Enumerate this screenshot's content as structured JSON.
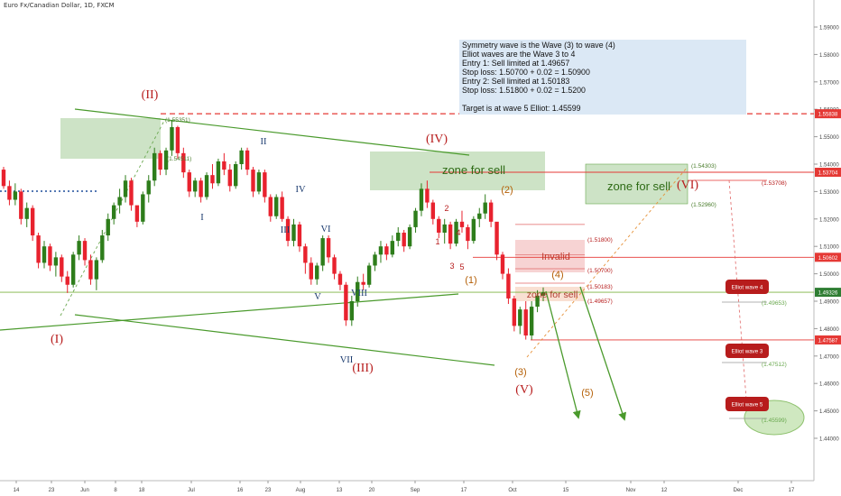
{
  "title": "Euro Fx/Canadian Dollar, 1D, FXCM",
  "info_lines": [
    "Symmetry wave is the Wave (3) to wave (4)",
    "Elliot waves are the Wave 3 to 4",
    "Entry 1: Sell limited at 1.49657",
    "Stop loss: 1.50700 + 0.02 = 1.50900",
    "Entry 2: Sell limited at 1.50183",
    "Stop loss: 1.51800 + 0.02 = 1.5200",
    "",
    "Target is at wave 5 Elliot: 1.45599"
  ],
  "colors": {
    "bull": "#2e7d1b",
    "bear": "#e8222e",
    "wave_red": "#b71c1c",
    "wave_blue": "#1a3a6e",
    "zone_green": "#cde3c6",
    "zone_red": "#f7d3d3",
    "line_green": "#4a9a2c",
    "price_tag_red": "#e53935",
    "price_tag_green": "#2e7d32"
  },
  "chart_data": {
    "type": "candlestick",
    "title": "Euro Fx/Canadian Dollar, 1D, FXCM",
    "ylim": [
      1.4355,
      1.5995
    ],
    "y_ticks": [
      "1.59000",
      "1.58000",
      "1.57000",
      "1.56000",
      "1.55000",
      "1.54000",
      "1.53000",
      "1.52000",
      "1.51000",
      "1.50000",
      "1.49000",
      "1.48000",
      "1.47000",
      "1.46000",
      "1.45000",
      "1.44000"
    ],
    "x_ticks": [
      "14",
      "23",
      "Jun",
      "8",
      "18",
      "Jul",
      "16",
      "23",
      "Aug",
      "13",
      "20",
      "Sep",
      "17",
      "Oct",
      "15",
      "Nov",
      "12",
      "Dec",
      "17"
    ],
    "wave_labels_main": [
      "(I)",
      "(II)",
      "(III)",
      "(IV)",
      "(V)",
      "(VI)"
    ],
    "wave_labels_roman": [
      "I",
      "II",
      "III",
      "IV",
      "V",
      "VI",
      "VII",
      "VIII",
      "VII"
    ],
    "wave_labels_small": [
      "(1)",
      "(2)",
      "(3)",
      "(4)",
      "(5)",
      "1",
      "2",
      "3",
      "4",
      "5"
    ],
    "zone_labels": [
      "zone for sell",
      "zone for sell",
      "Invalid",
      "zone for sell"
    ],
    "level_labels": [
      "(1.55351)",
      "(1.54511)",
      "(1.51800)",
      "(1.50700)",
      "(1.50183)",
      "(1.49657)",
      "(1.54303)",
      "(1.52960)",
      "(1.53708)",
      "(1.49653)",
      "(1.47512)",
      "(1.45599)"
    ],
    "price_tags": [
      {
        "label": "1.55838",
        "color": "red"
      },
      {
        "label": "1.53704",
        "color": "red"
      },
      {
        "label": "1.50602",
        "color": "red"
      },
      {
        "label": "1.49326",
        "color": "green"
      },
      {
        "label": "1.47587",
        "color": "red"
      }
    ],
    "elliot_bubbles": [
      "Elliot wave 4",
      "Elliot wave 3",
      "Elliot wave 5"
    ],
    "candles_ohlc": [
      [
        1.538,
        1.539,
        1.531,
        1.532
      ],
      [
        1.532,
        1.534,
        1.525,
        1.527
      ],
      [
        1.527,
        1.533,
        1.525,
        1.53
      ],
      [
        1.53,
        1.531,
        1.518,
        1.52
      ],
      [
        1.52,
        1.526,
        1.517,
        1.524
      ],
      [
        1.524,
        1.525,
        1.512,
        1.514
      ],
      [
        1.514,
        1.515,
        1.502,
        1.504
      ],
      [
        1.504,
        1.512,
        1.502,
        1.51
      ],
      [
        1.51,
        1.511,
        1.501,
        1.503
      ],
      [
        1.503,
        1.508,
        1.499,
        1.506
      ],
      [
        1.506,
        1.507,
        1.497,
        1.499
      ],
      [
        1.499,
        1.501,
        1.493,
        1.496
      ],
      [
        1.496,
        1.508,
        1.495,
        1.507
      ],
      [
        1.507,
        1.514,
        1.505,
        1.512
      ],
      [
        1.512,
        1.513,
        1.503,
        1.505
      ],
      [
        1.505,
        1.507,
        1.496,
        1.498
      ],
      [
        1.498,
        1.506,
        1.494,
        1.505
      ],
      [
        1.505,
        1.516,
        1.504,
        1.514
      ],
      [
        1.514,
        1.522,
        1.512,
        1.52
      ],
      [
        1.52,
        1.526,
        1.518,
        1.525
      ],
      [
        1.525,
        1.531,
        1.522,
        1.528
      ],
      [
        1.528,
        1.536,
        1.526,
        1.534
      ],
      [
        1.534,
        1.535,
        1.523,
        1.525
      ],
      [
        1.525,
        1.523,
        1.517,
        1.519
      ],
      [
        1.519,
        1.53,
        1.518,
        1.529
      ],
      [
        1.529,
        1.536,
        1.526,
        1.534
      ],
      [
        1.534,
        1.546,
        1.532,
        1.544
      ],
      [
        1.544,
        1.545,
        1.536,
        1.538
      ],
      [
        1.538,
        1.546,
        1.536,
        1.545
      ],
      [
        1.545,
        1.556,
        1.543,
        1.5535
      ],
      [
        1.5535,
        1.554,
        1.542,
        1.544
      ],
      [
        1.544,
        1.546,
        1.535,
        1.537
      ],
      [
        1.537,
        1.538,
        1.528,
        1.53
      ],
      [
        1.53,
        1.535,
        1.528,
        1.534
      ],
      [
        1.534,
        1.535,
        1.526,
        1.528
      ],
      [
        1.528,
        1.537,
        1.527,
        1.536
      ],
      [
        1.536,
        1.54,
        1.531,
        1.533
      ],
      [
        1.533,
        1.542,
        1.532,
        1.541
      ],
      [
        1.541,
        1.544,
        1.536,
        1.538
      ],
      [
        1.538,
        1.54,
        1.53,
        1.532
      ],
      [
        1.532,
        1.541,
        1.531,
        1.54
      ],
      [
        1.54,
        1.546,
        1.538,
        1.545
      ],
      [
        1.545,
        1.546,
        1.536,
        1.538
      ],
      [
        1.538,
        1.539,
        1.528,
        1.53
      ],
      [
        1.53,
        1.538,
        1.529,
        1.537
      ],
      [
        1.537,
        1.538,
        1.526,
        1.528
      ],
      [
        1.528,
        1.529,
        1.519,
        1.521
      ],
      [
        1.521,
        1.529,
        1.52,
        1.528
      ],
      [
        1.528,
        1.53,
        1.519,
        1.52
      ],
      [
        1.52,
        1.521,
        1.51,
        1.512
      ],
      [
        1.512,
        1.52,
        1.51,
        1.518
      ],
      [
        1.518,
        1.519,
        1.508,
        1.51
      ],
      [
        1.51,
        1.511,
        1.5,
        1.504
      ],
      [
        1.504,
        1.506,
        1.496,
        1.498
      ],
      [
        1.498,
        1.504,
        1.496,
        1.503
      ],
      [
        1.503,
        1.514,
        1.501,
        1.513
      ],
      [
        1.513,
        1.514,
        1.504,
        1.506
      ],
      [
        1.506,
        1.507,
        1.498,
        1.5
      ],
      [
        1.5,
        1.501,
        1.494,
        1.496
      ],
      [
        1.496,
        1.497,
        1.481,
        1.483
      ],
      [
        1.483,
        1.492,
        1.481,
        1.49
      ],
      [
        1.49,
        1.499,
        1.488,
        1.497
      ],
      [
        1.497,
        1.5,
        1.494,
        1.496
      ],
      [
        1.496,
        1.504,
        1.495,
        1.503
      ],
      [
        1.503,
        1.508,
        1.501,
        1.507
      ],
      [
        1.507,
        1.512,
        1.504,
        1.51
      ],
      [
        1.51,
        1.511,
        1.505,
        1.507
      ],
      [
        1.507,
        1.514,
        1.506,
        1.512
      ],
      [
        1.512,
        1.517,
        1.51,
        1.515
      ],
      [
        1.515,
        1.516,
        1.508,
        1.51
      ],
      [
        1.51,
        1.518,
        1.509,
        1.517
      ],
      [
        1.517,
        1.524,
        1.515,
        1.523
      ],
      [
        1.523,
        1.533,
        1.521,
        1.531
      ],
      [
        1.531,
        1.534,
        1.524,
        1.526
      ],
      [
        1.526,
        1.527,
        1.518,
        1.52
      ],
      [
        1.52,
        1.521,
        1.513,
        1.515
      ],
      [
        1.515,
        1.52,
        1.511,
        1.518
      ],
      [
        1.518,
        1.519,
        1.509,
        1.511
      ],
      [
        1.511,
        1.52,
        1.51,
        1.519
      ],
      [
        1.519,
        1.523,
        1.515,
        1.517
      ],
      [
        1.517,
        1.518,
        1.509,
        1.512
      ],
      [
        1.512,
        1.521,
        1.511,
        1.52
      ],
      [
        1.52,
        1.524,
        1.517,
        1.522
      ],
      [
        1.522,
        1.529,
        1.52,
        1.526
      ],
      [
        1.526,
        1.527,
        1.517,
        1.519
      ],
      [
        1.519,
        1.518,
        1.505,
        1.507
      ],
      [
        1.507,
        1.508,
        1.498,
        1.5
      ],
      [
        1.5,
        1.502,
        1.489,
        1.491
      ],
      [
        1.491,
        1.492,
        1.479,
        1.481
      ],
      [
        1.481,
        1.488,
        1.478,
        1.487
      ],
      [
        1.487,
        1.49,
        1.476,
        1.4775
      ],
      [
        1.4775,
        1.49,
        1.476,
        1.488
      ],
      [
        1.488,
        1.494,
        1.486,
        1.492
      ],
      [
        1.492,
        1.495,
        1.49,
        1.4933
      ]
    ]
  }
}
